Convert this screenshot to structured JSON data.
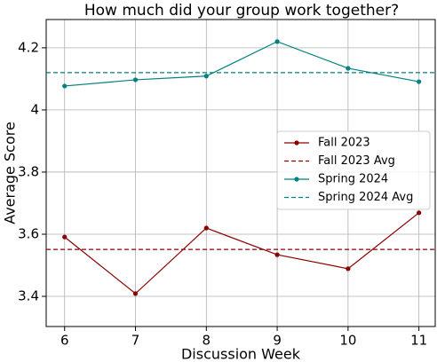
{
  "chart_data": {
    "type": "line",
    "title": "How much did your group work together?",
    "x_label": "Discussion Week",
    "y_label": "Average Score",
    "x": [
      6,
      7,
      8,
      9,
      10,
      11
    ],
    "series": [
      {
        "name": "Fall 2023",
        "color": "#8b0000",
        "values": [
          3.591,
          3.409,
          3.62,
          3.534,
          3.489,
          3.669
        ]
      },
      {
        "name": "Fall 2023 Avg",
        "color": "#8b0000",
        "style": "dashed",
        "value": 3.551
      },
      {
        "name": "Spring 2024",
        "color": "#008080",
        "values": [
          4.077,
          4.097,
          4.109,
          4.22,
          4.134,
          4.091
        ]
      },
      {
        "name": "Spring 2024 Avg",
        "color": "#008080",
        "style": "dashed",
        "value": 4.12
      }
    ],
    "xlim": [
      5.74,
      11.23
    ],
    "ylim": [
      3.303,
      4.291
    ],
    "xticks": [
      6,
      7,
      8,
      9,
      10,
      11
    ],
    "yticks": [
      3.4,
      3.6,
      3.8,
      4.0,
      4.2
    ],
    "grid": true,
    "legend": "right"
  }
}
